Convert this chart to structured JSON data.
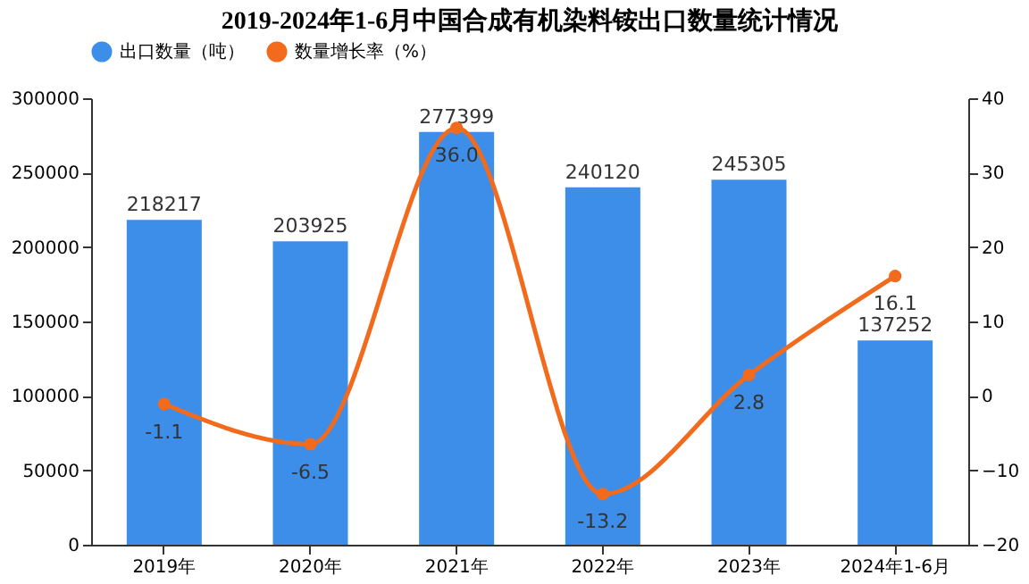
{
  "chart_data": {
    "type": "bar",
    "title": "2019-2024年1-6月中国合成有机染料铵出口数量统计情况",
    "categories": [
      "2019年",
      "2020年",
      "2021年",
      "2022年",
      "2023年",
      "2024年1-6月"
    ],
    "series": [
      {
        "name": "出口数量（吨）",
        "color": "#3d8ee8",
        "values": [
          218217,
          203925,
          277399,
          240120,
          245305,
          137252
        ]
      },
      {
        "name": "数量增长率（%）",
        "type": "line",
        "axis": "y2",
        "color": "#f26b1d",
        "values": [
          -1.1,
          -6.5,
          36.0,
          -13.2,
          2.8,
          16.1
        ],
        "value_labels": [
          "-1.1",
          "-6.5",
          "36.0",
          "-13.2",
          "2.8",
          "16.1"
        ]
      }
    ],
    "ylim": [
      0,
      300000
    ],
    "yticks": [
      0,
      50000,
      100000,
      150000,
      200000,
      250000,
      300000
    ],
    "y2lim": [
      -20,
      40
    ],
    "y2ticks": [
      -20,
      -10,
      0,
      10,
      20,
      30,
      40
    ],
    "data_labels": true,
    "legend": "top",
    "grid": false,
    "marker": "circle",
    "line_style": "solid"
  }
}
